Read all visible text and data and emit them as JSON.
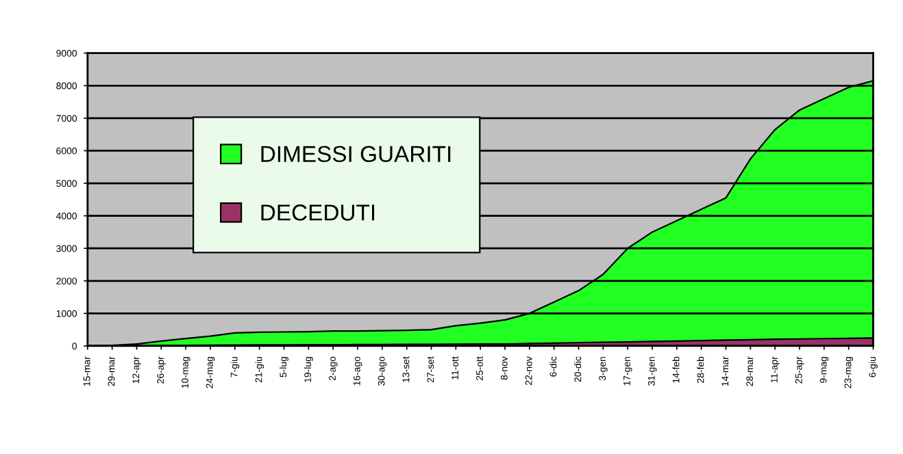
{
  "chart_data": {
    "type": "area",
    "categories": [
      "15-mar",
      "29-mar",
      "12-apr",
      "26-apr",
      "10-mag",
      "24-mag",
      "7-giu",
      "21-giu",
      "5-lug",
      "19-lug",
      "2-ago",
      "16-ago",
      "30-ago",
      "13-set",
      "27-set",
      "11-ott",
      "25-ott",
      "8-nov",
      "22-nov",
      "6-dic",
      "20-dic",
      "3-gen",
      "17-gen",
      "31-gen",
      "14-feb",
      "28-feb",
      "14-mar",
      "28-mar",
      "11-apr",
      "25-apr",
      "9-mag",
      "23-mag",
      "6-giu"
    ],
    "series": [
      {
        "name": "DIMESSI GUARITI",
        "color": "#22ff22",
        "values": [
          0,
          20,
          60,
          150,
          230,
          300,
          400,
          420,
          430,
          440,
          460,
          460,
          470,
          480,
          500,
          620,
          700,
          800,
          1000,
          1350,
          1700,
          2200,
          3000,
          3500,
          3850,
          4200,
          4550,
          5750,
          6650,
          7250,
          7600,
          7950,
          8150
        ]
      },
      {
        "name": "DECEDUTI",
        "color": "#993366",
        "values": [
          0,
          5,
          10,
          15,
          20,
          25,
          30,
          32,
          35,
          38,
          40,
          42,
          45,
          48,
          50,
          55,
          58,
          60,
          75,
          85,
          100,
          115,
          125,
          140,
          150,
          165,
          180,
          190,
          205,
          215,
          225,
          235,
          245
        ]
      }
    ],
    "ylim": [
      0,
      9000
    ],
    "yticks": [
      0,
      1000,
      2000,
      3000,
      4000,
      5000,
      6000,
      7000,
      8000,
      9000
    ],
    "grid": "y",
    "legend": "top left"
  }
}
